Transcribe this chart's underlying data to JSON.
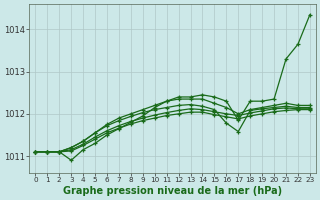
{
  "xlabel": "Graphe pression niveau de la mer (hPa)",
  "background_color": "#cce8e8",
  "grid_color": "#b0c8c8",
  "line_color": "#1a6b1a",
  "x": [
    0,
    1,
    2,
    3,
    4,
    5,
    6,
    7,
    8,
    9,
    10,
    11,
    12,
    13,
    14,
    15,
    16,
    17,
    18,
    19,
    20,
    21,
    22,
    23
  ],
  "ylim": [
    1010.6,
    1014.6
  ],
  "yticks": [
    1011,
    1012,
    1013,
    1014
  ],
  "series": [
    [
      1011.1,
      1011.1,
      1011.1,
      1010.9,
      1011.15,
      1011.3,
      1011.5,
      1011.65,
      1011.8,
      1011.95,
      1012.15,
      1012.3,
      1012.4,
      1012.4,
      1012.45,
      1012.4,
      1012.3,
      1011.85,
      1012.3,
      1012.3,
      1012.35,
      1013.3,
      1013.65,
      1014.35
    ],
    [
      1011.1,
      1011.1,
      1011.1,
      1011.2,
      1011.35,
      1011.55,
      1011.75,
      1011.9,
      1012.0,
      1012.1,
      1012.2,
      1012.3,
      1012.35,
      1012.35,
      1012.35,
      1012.25,
      1012.15,
      1012.0,
      1012.1,
      1012.15,
      1012.2,
      1012.25,
      1012.2,
      1012.2
    ],
    [
      1011.1,
      1011.1,
      1011.1,
      1011.2,
      1011.35,
      1011.55,
      1011.72,
      1011.84,
      1011.94,
      1012.03,
      1012.1,
      1012.15,
      1012.2,
      1012.22,
      1012.18,
      1012.1,
      1011.78,
      1011.58,
      1012.08,
      1012.12,
      1012.15,
      1012.18,
      1012.15,
      1012.15
    ],
    [
      1011.1,
      1011.1,
      1011.1,
      1011.15,
      1011.28,
      1011.45,
      1011.6,
      1011.72,
      1011.82,
      1011.9,
      1011.97,
      1012.03,
      1012.08,
      1012.12,
      1012.1,
      1012.05,
      1012.0,
      1011.96,
      1012.02,
      1012.07,
      1012.12,
      1012.14,
      1012.12,
      1012.12
    ],
    [
      1011.1,
      1011.1,
      1011.1,
      1011.12,
      1011.25,
      1011.4,
      1011.55,
      1011.66,
      1011.76,
      1011.84,
      1011.9,
      1011.96,
      1012.0,
      1012.04,
      1012.04,
      1011.98,
      1011.93,
      1011.88,
      1011.95,
      1012.0,
      1012.05,
      1012.08,
      1012.1,
      1012.1
    ]
  ]
}
